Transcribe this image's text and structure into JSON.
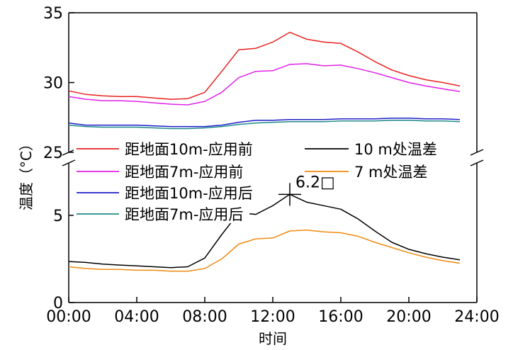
{
  "chart_data": {
    "type": "line",
    "xlabel": "时间",
    "ylabel": "温度（°C）",
    "x_ticks": [
      "00:00",
      "04:00",
      "08:00",
      "12:00",
      "16:00",
      "20:00",
      "24:00"
    ],
    "xlim": [
      0,
      24
    ],
    "broken_y_axis": true,
    "upper_panel": {
      "ylim": [
        25,
        35
      ],
      "yticks": [
        "25",
        "30",
        "35"
      ],
      "series": [
        {
          "name": "距地面10m-应用前",
          "color": "#e8201e",
          "x": [
            0,
            1,
            2,
            3,
            4,
            5,
            6,
            7,
            8,
            9,
            10,
            11,
            12,
            13,
            14,
            15,
            16,
            17,
            18,
            19,
            20,
            21,
            22,
            23
          ],
          "values": [
            29.4,
            29.15,
            29.05,
            29.0,
            29.0,
            28.9,
            28.8,
            28.85,
            29.3,
            30.8,
            32.35,
            32.45,
            32.9,
            33.6,
            33.1,
            32.9,
            32.8,
            32.2,
            31.5,
            30.9,
            30.5,
            30.2,
            30.0,
            29.75
          ]
        },
        {
          "name": "距地面7m-应用前",
          "color": "#e020e8",
          "x": [
            0,
            1,
            2,
            3,
            4,
            5,
            6,
            7,
            8,
            9,
            10,
            11,
            12,
            13,
            14,
            15,
            16,
            17,
            18,
            19,
            20,
            21,
            22,
            23
          ],
          "values": [
            29.0,
            28.8,
            28.7,
            28.7,
            28.65,
            28.55,
            28.45,
            28.4,
            28.65,
            29.3,
            30.35,
            30.8,
            30.85,
            31.3,
            31.35,
            31.2,
            31.25,
            31.0,
            30.7,
            30.35,
            30.0,
            29.75,
            29.55,
            29.35
          ]
        },
        {
          "name": "距地面10m-应用后",
          "color": "#1f1fc8",
          "x": [
            0,
            1,
            2,
            3,
            4,
            5,
            6,
            7,
            8,
            9,
            10,
            11,
            12,
            13,
            14,
            15,
            16,
            17,
            18,
            19,
            20,
            21,
            22,
            23
          ],
          "values": [
            27.1,
            26.95,
            26.95,
            26.95,
            26.95,
            26.9,
            26.85,
            26.85,
            26.85,
            26.95,
            27.15,
            27.3,
            27.3,
            27.35,
            27.35,
            27.35,
            27.4,
            27.4,
            27.4,
            27.45,
            27.45,
            27.4,
            27.4,
            27.35
          ]
        },
        {
          "name": "距地面7m-应用后",
          "color": "#1f8a8a",
          "x": [
            0,
            1,
            2,
            3,
            4,
            5,
            6,
            7,
            8,
            9,
            10,
            11,
            12,
            13,
            14,
            15,
            16,
            17,
            18,
            19,
            20,
            21,
            22,
            23
          ],
          "values": [
            26.95,
            26.85,
            26.8,
            26.8,
            26.8,
            26.75,
            26.7,
            26.7,
            26.75,
            26.85,
            27.0,
            27.1,
            27.15,
            27.2,
            27.2,
            27.2,
            27.25,
            27.25,
            27.25,
            27.3,
            27.3,
            27.25,
            27.25,
            27.2
          ]
        }
      ]
    },
    "lower_panel": {
      "ylim": [
        0,
        8
      ],
      "yticks": [
        "0",
        "5"
      ],
      "series": [
        {
          "name": "10 m处温差",
          "color": "#000000",
          "x": [
            0,
            1,
            2,
            3,
            4,
            5,
            6,
            7,
            8,
            9,
            10,
            11,
            12,
            13,
            14,
            15,
            16,
            17,
            18,
            19,
            20,
            21,
            22,
            23
          ],
          "values": [
            2.35,
            2.3,
            2.2,
            2.15,
            2.1,
            2.05,
            2.0,
            2.05,
            2.55,
            3.9,
            5.15,
            5.05,
            5.55,
            6.2,
            5.75,
            5.55,
            5.35,
            4.8,
            4.1,
            3.45,
            3.05,
            2.8,
            2.6,
            2.45
          ]
        },
        {
          "name": "7 m处温差",
          "color": "#f08a10",
          "x": [
            0,
            1,
            2,
            3,
            4,
            5,
            6,
            7,
            8,
            9,
            10,
            11,
            12,
            13,
            14,
            15,
            16,
            17,
            18,
            19,
            20,
            21,
            22,
            23
          ],
          "values": [
            2.05,
            1.95,
            1.9,
            1.9,
            1.85,
            1.85,
            1.8,
            1.8,
            1.95,
            2.5,
            3.35,
            3.65,
            3.7,
            4.1,
            4.15,
            4.05,
            4.0,
            3.8,
            3.45,
            3.15,
            2.85,
            2.6,
            2.4,
            2.25
          ]
        }
      ]
    },
    "annotation": {
      "text": "6.2□",
      "x": 13,
      "y": 6.2
    },
    "legend": {
      "placement": "center",
      "columns": 2,
      "order": [
        "距地面10m-应用前",
        "10 m处温差",
        "距地面7m-应用前",
        "7 m处温差",
        "距地面10m-应用后",
        "距地面7m-应用后"
      ]
    }
  }
}
